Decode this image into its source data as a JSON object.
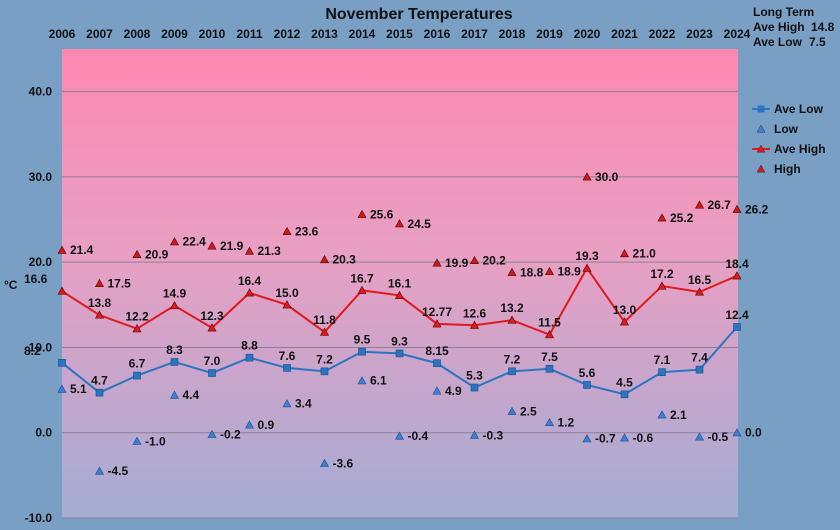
{
  "chart_data": {
    "type": "line",
    "title": "November Temperatures",
    "ylabel": "°C",
    "ylim": [
      -10,
      45
    ],
    "yticks": [
      "40.0",
      "30.0",
      "20.0",
      "10.0",
      "0.0",
      "-10.0"
    ],
    "ytick_values": [
      40,
      30,
      20,
      10,
      0,
      -10
    ],
    "categories": [
      "2006",
      "2007",
      "2008",
      "2009",
      "2010",
      "2011",
      "2012",
      "2013",
      "2014",
      "2015",
      "2016",
      "2017",
      "2018",
      "2019",
      "2020",
      "2021",
      "2022",
      "2023",
      "2024"
    ],
    "long_term": {
      "heading": "Long Term",
      "ave_high_label": "Ave High",
      "ave_high": "14.8",
      "ave_low_label": "Ave Low",
      "ave_low": "7.5"
    },
    "series": [
      {
        "name": "Ave Low",
        "kind": "line",
        "color": "#2a74c0",
        "marker": "square",
        "values": [
          8.2,
          4.7,
          6.7,
          8.3,
          7.0,
          8.8,
          7.6,
          7.2,
          9.5,
          9.3,
          8.15,
          5.3,
          7.2,
          7.5,
          5.6,
          4.5,
          7.1,
          7.4,
          12.4
        ],
        "labels": [
          "8.2",
          "4.7",
          "6.7",
          "8.3",
          "7.0",
          "8.8",
          "7.6",
          "7.2",
          "9.5",
          "9.3",
          "8.15",
          "5.3",
          "7.2",
          "7.5",
          "5.6",
          "4.5",
          "7.1",
          "7.4",
          "12.4"
        ]
      },
      {
        "name": "Low",
        "kind": "marker",
        "color": "#3c7fd0",
        "marker": "triangle",
        "values": [
          5.1,
          -4.5,
          -1.0,
          4.4,
          -0.2,
          0.9,
          3.4,
          -3.6,
          6.1,
          -0.4,
          4.9,
          -0.3,
          2.5,
          1.2,
          -0.7,
          -0.6,
          2.1,
          -0.5,
          0.0
        ],
        "labels": [
          "5.1",
          "-4.5",
          "-1.0",
          "4.4",
          "-0.2",
          "0.9",
          "3.4",
          "-3.6",
          "6.1",
          "-0.4",
          "4.9",
          "-0.3",
          "2.5",
          "1.2",
          "-0.7",
          "-0.6",
          "2.1",
          "-0.5",
          "0.0"
        ]
      },
      {
        "name": "Ave High",
        "kind": "line",
        "color": "#e01a1a",
        "marker": "triangle",
        "values": [
          16.6,
          13.8,
          12.2,
          14.9,
          12.3,
          16.4,
          15.0,
          11.8,
          16.7,
          16.1,
          12.77,
          12.6,
          13.2,
          11.5,
          19.3,
          13.0,
          17.2,
          16.5,
          18.4
        ],
        "labels": [
          "16.6",
          "13.8",
          "12.2",
          "14.9",
          "12.3",
          "16.4",
          "15.0",
          "11.8",
          "16.7",
          "16.1",
          "12.77",
          "12.6",
          "13.2",
          "11.5",
          "19.3",
          "13.0",
          "17.2",
          "16.5",
          "18.4"
        ]
      },
      {
        "name": "High",
        "kind": "marker",
        "color": "#cc1a1a",
        "marker": "triangle",
        "values": [
          21.4,
          17.5,
          20.9,
          22.4,
          21.9,
          21.3,
          23.6,
          20.3,
          25.6,
          24.5,
          19.9,
          20.2,
          18.8,
          18.9,
          30.0,
          21.0,
          25.2,
          26.7,
          26.2
        ],
        "labels": [
          "21.4",
          "17.5",
          "20.9",
          "22.4",
          "21.9",
          "21.3",
          "23.6",
          "20.3",
          "25.6",
          "24.5",
          "19.9",
          "20.2",
          "18.8",
          "18.9",
          "30.0",
          "21.0",
          "25.2",
          "26.7",
          "26.2"
        ]
      }
    ],
    "legend_position": "right",
    "grid": true
  }
}
